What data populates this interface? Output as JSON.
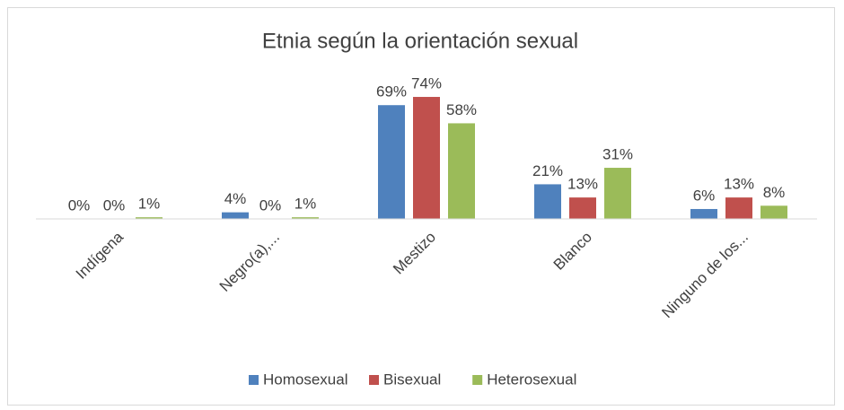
{
  "chart_data": {
    "type": "bar",
    "title": "Etnia según la orientación sexual",
    "categories": [
      "Indígena",
      "Negro(a),...",
      "Mestizo",
      "Blanco",
      "Ninguno de los..."
    ],
    "series": [
      {
        "name": "Homosexual",
        "color": "#4f81bd",
        "values": [
          0,
          4,
          69,
          21,
          6
        ],
        "value_labels": [
          "0%",
          "4%",
          "69%",
          "21%",
          "6%"
        ]
      },
      {
        "name": "Bisexual",
        "color": "#c0504d",
        "values": [
          0,
          0,
          74,
          13,
          13
        ],
        "value_labels": [
          "0%",
          "0%",
          "74%",
          "13%",
          "13%"
        ]
      },
      {
        "name": "Heterosexual",
        "color": "#9bbb59",
        "values": [
          1,
          1,
          58,
          31,
          8
        ],
        "value_labels": [
          "1%",
          "1%",
          "58%",
          "31%",
          "8%"
        ]
      }
    ],
    "ylim": [
      0,
      80
    ],
    "legend": "bottom"
  }
}
